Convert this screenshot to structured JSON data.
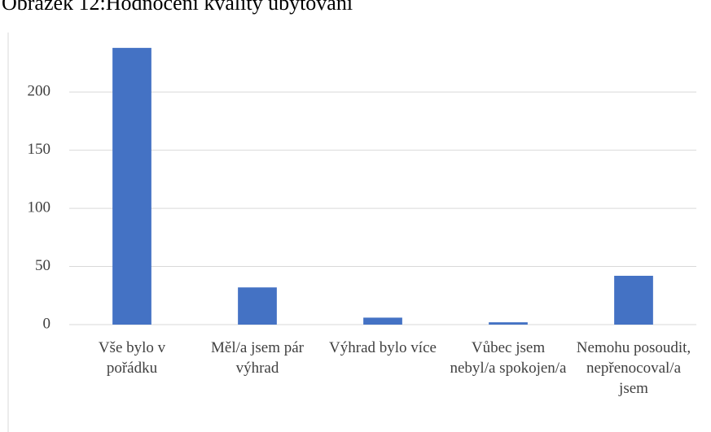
{
  "chart_data": {
    "type": "bar",
    "title": "Obrázek 12:Hodnocení kvality ubytování",
    "categories": [
      "Vše bylo v pořádku",
      "Měl/a jsem pár výhrad",
      "Výhrad bylo více",
      "Vůbec jsem nebyl/a spokojen/a",
      "Nemohu posoudit, nepřenocoval/a jsem"
    ],
    "values": [
      238,
      32,
      6,
      2,
      42
    ],
    "color": "#4472c4",
    "ylim": [
      0,
      240
    ],
    "yticks": [
      0,
      50,
      100,
      150,
      200
    ],
    "grid": true
  }
}
